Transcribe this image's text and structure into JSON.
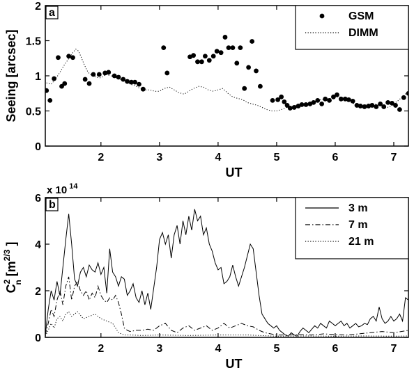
{
  "chart_data": [
    {
      "panel": "a",
      "type": "scatter",
      "xlabel": "UT",
      "ylabel": "Seeing [arcsec]",
      "xlim": [
        1.05,
        7.25
      ],
      "ylim": [
        0,
        2
      ],
      "xticks": [
        2,
        3,
        4,
        5,
        6,
        7
      ],
      "xtick_labels": [
        "2",
        "3",
        "4",
        "5",
        "6",
        "7"
      ],
      "yticks": [
        0,
        0.5,
        1,
        1.5,
        2
      ],
      "ytick_labels": [
        "0",
        "0.5",
        "1",
        "1.5",
        "2"
      ],
      "legend_position": "top-right",
      "series": [
        {
          "name": "GSM",
          "style": "filled-circle",
          "color": "#000000",
          "x": [
            1.07,
            1.13,
            1.2,
            1.27,
            1.33,
            1.38,
            1.45,
            1.52,
            1.73,
            1.8,
            1.87,
            1.97,
            2.07,
            2.13,
            2.23,
            2.3,
            2.38,
            2.45,
            2.52,
            2.58,
            2.65,
            2.72,
            3.07,
            3.13,
            3.52,
            3.58,
            3.65,
            3.72,
            3.78,
            3.85,
            3.92,
            3.98,
            4.05,
            4.12,
            4.18,
            4.25,
            4.32,
            4.38,
            4.45,
            4.52,
            4.58,
            4.65,
            4.72,
            4.93,
            5.02,
            5.08,
            5.13,
            5.18,
            5.23,
            5.3,
            5.37,
            5.43,
            5.5,
            5.57,
            5.63,
            5.7,
            5.77,
            5.83,
            5.9,
            5.97,
            6.03,
            6.1,
            6.17,
            6.23,
            6.3,
            6.37,
            6.43,
            6.5,
            6.57,
            6.63,
            6.7,
            6.77,
            6.83,
            6.9,
            6.97,
            7.03,
            7.1,
            7.17,
            7.25
          ],
          "y": [
            0.79,
            0.65,
            0.96,
            1.26,
            0.85,
            0.89,
            1.28,
            1.26,
            0.95,
            0.89,
            1.02,
            1.02,
            1.04,
            1.05,
            1.0,
            0.98,
            0.95,
            0.92,
            0.91,
            0.91,
            0.88,
            0.81,
            1.4,
            1.04,
            1.27,
            1.29,
            1.2,
            1.2,
            1.28,
            1.22,
            1.28,
            1.35,
            1.33,
            1.55,
            1.4,
            1.4,
            1.18,
            1.4,
            0.82,
            1.12,
            1.49,
            1.07,
            0.85,
            0.65,
            0.66,
            0.7,
            0.63,
            0.58,
            0.54,
            0.55,
            0.57,
            0.59,
            0.59,
            0.6,
            0.62,
            0.65,
            0.6,
            0.67,
            0.65,
            0.7,
            0.73,
            0.67,
            0.67,
            0.66,
            0.64,
            0.58,
            0.57,
            0.56,
            0.57,
            0.58,
            0.56,
            0.6,
            0.56,
            0.62,
            0.61,
            0.58,
            0.52,
            0.69,
            0.75
          ]
        },
        {
          "name": "DIMM",
          "style": "dotted",
          "color": "#000000",
          "x": [
            1.07,
            1.15,
            1.22,
            1.3,
            1.37,
            1.43,
            1.48,
            1.52,
            1.57,
            1.62,
            1.67,
            1.72,
            1.78,
            1.85,
            1.92,
            2.0,
            2.08,
            2.17,
            2.25,
            2.33,
            2.42,
            2.5,
            2.58,
            2.67,
            2.75,
            2.83,
            2.92,
            3.0,
            3.08,
            3.17,
            3.25,
            3.33,
            3.42,
            3.5,
            3.58,
            3.67,
            3.75,
            3.83,
            3.92,
            4.0,
            4.08,
            4.17,
            4.25,
            4.33,
            4.42,
            4.5,
            4.58,
            4.67,
            4.75,
            4.83,
            4.92,
            5.0,
            5.08,
            5.17,
            5.25,
            5.33,
            5.42,
            5.5,
            5.58,
            5.67,
            5.75,
            5.83,
            5.92,
            6.0,
            6.08,
            6.17,
            6.25,
            6.33,
            6.42,
            6.5,
            6.58,
            6.67,
            6.75,
            6.83,
            6.92,
            7.0,
            7.08,
            7.17,
            7.25
          ],
          "y": [
            0.9,
            0.88,
            0.95,
            1.05,
            1.15,
            1.22,
            1.28,
            1.33,
            1.38,
            1.35,
            1.25,
            1.15,
            1.05,
            1.0,
            0.98,
            0.97,
            1.02,
            1.0,
            0.98,
            0.95,
            0.92,
            0.88,
            0.86,
            0.82,
            0.8,
            0.8,
            0.78,
            0.78,
            0.82,
            0.84,
            0.8,
            0.76,
            0.74,
            0.78,
            0.82,
            0.85,
            0.84,
            0.8,
            0.78,
            0.8,
            0.82,
            0.75,
            0.7,
            0.68,
            0.66,
            0.62,
            0.6,
            0.58,
            0.55,
            0.52,
            0.5,
            0.5,
            0.52,
            0.55,
            0.56,
            0.58,
            0.58,
            0.6,
            0.62,
            0.64,
            0.66,
            0.66,
            0.68,
            0.7,
            0.7,
            0.67,
            0.63,
            0.6,
            0.58,
            0.58,
            0.6,
            0.6,
            0.58,
            0.56,
            0.55,
            0.6,
            0.65,
            0.72,
            0.78
          ]
        }
      ]
    },
    {
      "panel": "b",
      "type": "line",
      "xlabel": "UT",
      "ylabel": "C",
      "ylabel_sub": "n",
      "ylabel_sup": "2",
      "ylabel_units": "[m",
      "ylabel_units_sup": "2/3",
      "ylabel_close": "]",
      "multiplier_label": "x 10",
      "multiplier_exponent": "14",
      "xlim": [
        1.05,
        7.25
      ],
      "ylim": [
        0,
        6
      ],
      "xticks": [
        2,
        3,
        4,
        5,
        6,
        7
      ],
      "xtick_labels": [
        "2",
        "3",
        "4",
        "5",
        "6",
        "7"
      ],
      "yticks": [
        0,
        2,
        4,
        6
      ],
      "ytick_labels": [
        "0",
        "2",
        "4",
        "6"
      ],
      "legend_position": "top-right",
      "series": [
        {
          "name": "3 m",
          "style": "solid",
          "color": "#000000",
          "x": [
            1.05,
            1.1,
            1.15,
            1.2,
            1.25,
            1.3,
            1.35,
            1.4,
            1.45,
            1.5,
            1.55,
            1.6,
            1.65,
            1.7,
            1.75,
            1.8,
            1.85,
            1.9,
            1.95,
            2.0,
            2.05,
            2.1,
            2.15,
            2.2,
            2.25,
            2.3,
            2.35,
            2.4,
            2.45,
            2.5,
            2.55,
            2.6,
            2.65,
            2.7,
            2.75,
            2.8,
            2.85,
            2.9,
            2.95,
            3.0,
            3.05,
            3.1,
            3.15,
            3.2,
            3.25,
            3.3,
            3.35,
            3.4,
            3.45,
            3.5,
            3.55,
            3.6,
            3.65,
            3.7,
            3.75,
            3.8,
            3.85,
            3.9,
            3.95,
            4.0,
            4.05,
            4.1,
            4.15,
            4.2,
            4.25,
            4.3,
            4.35,
            4.4,
            4.45,
            4.5,
            4.55,
            4.6,
            4.65,
            4.7,
            4.75,
            4.8,
            4.85,
            4.9,
            4.95,
            5.0,
            5.05,
            5.1,
            5.15,
            5.2,
            5.25,
            5.3,
            5.35,
            5.4,
            5.45,
            5.5,
            5.55,
            5.6,
            5.65,
            5.7,
            5.75,
            5.8,
            5.85,
            5.9,
            5.95,
            6.0,
            6.05,
            6.1,
            6.15,
            6.2,
            6.25,
            6.3,
            6.35,
            6.4,
            6.45,
            6.5,
            6.55,
            6.6,
            6.65,
            6.7,
            6.75,
            6.8,
            6.85,
            6.9,
            6.95,
            7.0,
            7.05,
            7.1,
            7.15,
            7.2,
            7.25
          ],
          "y": [
            0.1,
            1.2,
            2.0,
            1.6,
            2.4,
            1.8,
            3.0,
            4.2,
            5.3,
            4.0,
            2.5,
            2.2,
            2.8,
            3.0,
            2.6,
            3.1,
            2.9,
            2.8,
            3.2,
            2.7,
            3.0,
            1.9,
            3.8,
            2.8,
            2.6,
            2.2,
            2.6,
            2.5,
            1.8,
            2.0,
            2.3,
            1.7,
            1.5,
            2.0,
            1.4,
            1.9,
            1.2,
            2.1,
            3.0,
            4.2,
            4.5,
            4.0,
            4.4,
            3.4,
            4.4,
            4.8,
            4.0,
            5.0,
            4.4,
            5.2,
            4.6,
            5.5,
            5.0,
            5.2,
            4.4,
            4.7,
            4.0,
            3.7,
            3.2,
            2.9,
            3.0,
            2.3,
            2.4,
            2.6,
            3.1,
            2.6,
            2.2,
            2.6,
            3.0,
            3.5,
            4.0,
            3.8,
            2.8,
            1.8,
            1.0,
            0.8,
            0.6,
            0.5,
            0.4,
            0.5,
            0.3,
            0.2,
            0.1,
            0.05,
            0.2,
            0.1,
            0.05,
            0.25,
            0.4,
            0.3,
            0.2,
            0.35,
            0.5,
            0.4,
            0.6,
            0.5,
            0.4,
            0.7,
            0.6,
            0.5,
            0.6,
            0.7,
            0.5,
            0.6,
            0.4,
            0.5,
            0.6,
            0.45,
            0.5,
            0.6,
            0.55,
            0.8,
            0.9,
            0.7,
            1.3,
            0.8,
            0.6,
            0.7,
            0.9,
            0.7,
            0.8,
            1.0,
            0.7,
            1.7,
            1.6
          ]
        },
        {
          "name": "7 m",
          "style": "dash-dot",
          "color": "#000000",
          "x": [
            1.05,
            1.1,
            1.15,
            1.2,
            1.25,
            1.3,
            1.35,
            1.4,
            1.45,
            1.5,
            1.55,
            1.6,
            1.65,
            1.7,
            1.75,
            1.8,
            1.85,
            1.9,
            1.95,
            2.0,
            2.05,
            2.1,
            2.15,
            2.2,
            2.25,
            2.3,
            2.35,
            2.4,
            2.45,
            2.5,
            2.6,
            2.7,
            2.8,
            2.9,
            3.0,
            3.1,
            3.2,
            3.3,
            3.4,
            3.5,
            3.6,
            3.7,
            3.8,
            3.9,
            4.0,
            4.1,
            4.2,
            4.3,
            4.4,
            4.5,
            4.6,
            4.7,
            4.8,
            4.9,
            5.0,
            5.2,
            5.4,
            5.6,
            5.8,
            6.0,
            6.2,
            6.4,
            6.6,
            6.8,
            7.0,
            7.25
          ],
          "y": [
            0.1,
            0.6,
            1.2,
            0.9,
            1.6,
            2.0,
            1.4,
            2.2,
            2.6,
            1.6,
            2.2,
            2.4,
            2.0,
            1.8,
            2.0,
            1.6,
            1.9,
            1.7,
            2.2,
            1.8,
            1.6,
            1.5,
            1.7,
            1.6,
            1.8,
            1.5,
            1.0,
            0.4,
            0.3,
            0.25,
            0.3,
            0.3,
            0.35,
            0.3,
            0.5,
            0.6,
            0.3,
            0.2,
            0.4,
            0.5,
            0.3,
            0.4,
            0.5,
            0.3,
            0.4,
            0.6,
            0.4,
            0.5,
            0.6,
            0.5,
            0.45,
            0.3,
            0.2,
            0.15,
            0.1,
            0.1,
            0.12,
            0.1,
            0.15,
            0.12,
            0.1,
            0.15,
            0.2,
            0.25,
            0.2,
            0.3
          ]
        },
        {
          "name": "21 m",
          "style": "dotted",
          "color": "#000000",
          "x": [
            1.05,
            1.1,
            1.15,
            1.2,
            1.25,
            1.3,
            1.35,
            1.4,
            1.45,
            1.5,
            1.55,
            1.6,
            1.7,
            1.8,
            1.9,
            2.0,
            2.1,
            2.2,
            2.3,
            2.4,
            2.5,
            2.7,
            3.0,
            3.5,
            4.0,
            4.5,
            5.0,
            5.5,
            6.0,
            6.5,
            7.0,
            7.25
          ],
          "y": [
            0.05,
            0.3,
            0.6,
            0.4,
            0.8,
            0.9,
            0.7,
            1.0,
            1.1,
            0.9,
            1.0,
            1.1,
            0.8,
            0.9,
            1.0,
            0.8,
            0.7,
            0.6,
            0.2,
            0.1,
            0.1,
            0.08,
            0.1,
            0.08,
            0.1,
            0.1,
            0.05,
            0.06,
            0.05,
            0.06,
            0.05,
            0.06
          ]
        }
      ]
    }
  ]
}
